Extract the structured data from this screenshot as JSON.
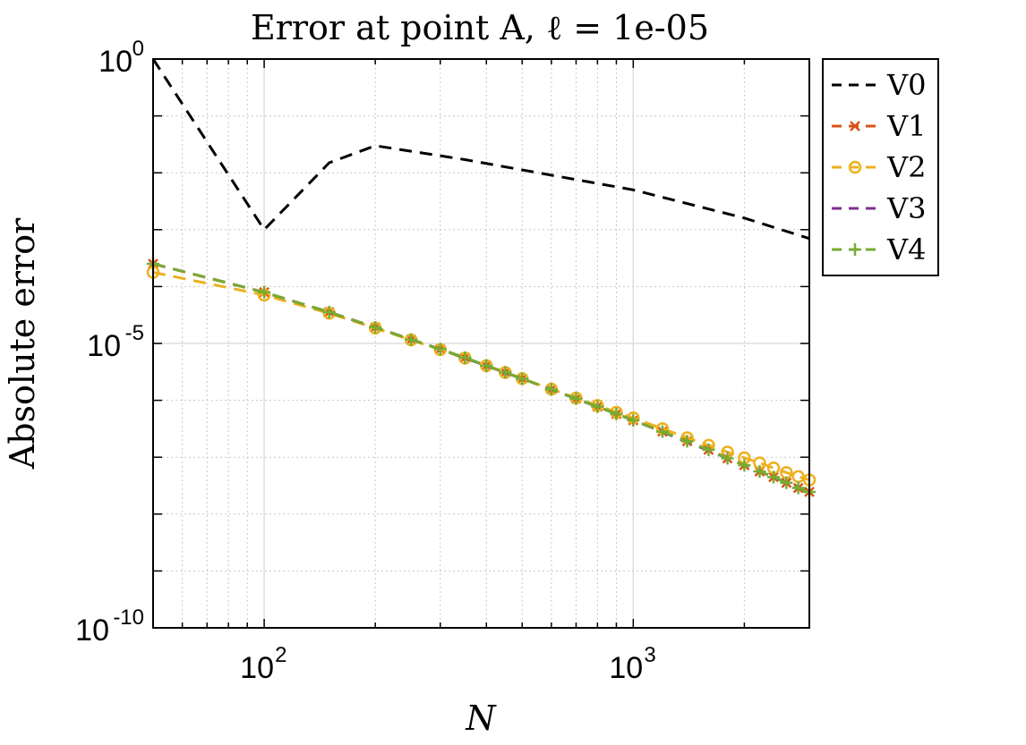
{
  "chart_data": {
    "type": "line",
    "title": "Error at point A, ℓ = 1e-05",
    "xlabel": "N",
    "ylabel": "Absolute error",
    "xscale": "log",
    "yscale": "log",
    "xlim": [
      50,
      3000
    ],
    "ylim": [
      1e-10,
      1
    ],
    "x_ticks": [
      {
        "value": 100,
        "base": "10",
        "exp": "2"
      },
      {
        "value": 1000,
        "base": "10",
        "exp": "3"
      }
    ],
    "y_ticks": [
      {
        "value": 1e-10,
        "base": "10",
        "exp": "-10"
      },
      {
        "value": 1e-05,
        "base": "10",
        "exp": "-5"
      },
      {
        "value": 1,
        "base": "10",
        "exp": "0"
      }
    ],
    "grid": true,
    "minor_grid": true,
    "legend_position": "outside-top-right",
    "series": [
      {
        "name": "V0",
        "color": "#000000",
        "dash": "dashed",
        "marker": "none",
        "x": [
          50,
          100,
          150,
          200,
          350,
          1000,
          2000,
          3000
        ],
        "y": [
          1.0,
          0.001,
          0.015,
          0.03,
          0.017,
          0.005,
          0.0016,
          0.0007
        ]
      },
      {
        "name": "V1",
        "color": "#D95319",
        "dash": "dashed",
        "marker": "x",
        "x": [
          50,
          100,
          150,
          200,
          250,
          300,
          350,
          400,
          450,
          500,
          600,
          700,
          800,
          900,
          1000,
          1200,
          1400,
          1600,
          1800,
          2000,
          2200,
          2400,
          2600,
          2800,
          3000
        ],
        "y": [
          0.000251,
          7.94e-05,
          3.55e-05,
          1.91e-05,
          1.17e-05,
          7.94e-06,
          5.62e-06,
          4.07e-06,
          3.1e-06,
          2.4e-06,
          1.55e-06,
          1.07e-06,
          7.76e-07,
          5.75e-07,
          4.47e-07,
          2.82e-07,
          1.91e-07,
          1.35e-07,
          9.55e-08,
          7.24e-08,
          5.62e-08,
          4.47e-08,
          3.55e-08,
          2.88e-08,
          2.45e-08
        ]
      },
      {
        "name": "V2",
        "color": "#EDB120",
        "dash": "dashed",
        "marker": "o",
        "x": [
          50,
          100,
          150,
          200,
          250,
          300,
          350,
          400,
          450,
          500,
          600,
          700,
          800,
          900,
          1000,
          1200,
          1400,
          1600,
          1800,
          2000,
          2200,
          2400,
          2600,
          2800,
          3000
        ],
        "y": [
          0.000178,
          7.08e-05,
          3.39e-05,
          1.86e-05,
          1.15e-05,
          7.76e-06,
          5.5e-06,
          4.07e-06,
          3.09e-06,
          2.4e-06,
          1.58e-06,
          1.1e-06,
          8.13e-07,
          6.17e-07,
          4.9e-07,
          3.16e-07,
          2.19e-07,
          1.62e-07,
          1.23e-07,
          9.77e-08,
          7.94e-08,
          6.46e-08,
          5.37e-08,
          4.57e-08,
          3.98e-08
        ]
      },
      {
        "name": "V3",
        "color": "#7E2F8E",
        "dash": "dashed",
        "marker": "none",
        "x": [
          50,
          100,
          150,
          200,
          300,
          500,
          1000,
          2000,
          3000
        ],
        "y": [
          0.000251,
          7.94e-05,
          3.55e-05,
          1.91e-05,
          7.94e-06,
          2.4e-06,
          4.47e-07,
          7.24e-08,
          2.45e-08
        ]
      },
      {
        "name": "V4",
        "color": "#77AC30",
        "dash": "dashed",
        "marker": "+",
        "x": [
          50,
          100,
          150,
          200,
          250,
          300,
          350,
          400,
          450,
          500,
          600,
          700,
          800,
          900,
          1000,
          1200,
          1400,
          1600,
          1800,
          2000,
          2200,
          2400,
          2600,
          2800,
          3000
        ],
        "y": [
          0.000251,
          7.94e-05,
          3.55e-05,
          1.91e-05,
          1.17e-05,
          7.94e-06,
          5.62e-06,
          4.07e-06,
          3.1e-06,
          2.4e-06,
          1.55e-06,
          1.07e-06,
          7.76e-07,
          5.75e-07,
          4.47e-07,
          2.82e-07,
          1.91e-07,
          1.35e-07,
          9.55e-08,
          7.24e-08,
          5.62e-08,
          4.47e-08,
          3.55e-08,
          2.88e-08,
          2.45e-08
        ]
      }
    ]
  }
}
